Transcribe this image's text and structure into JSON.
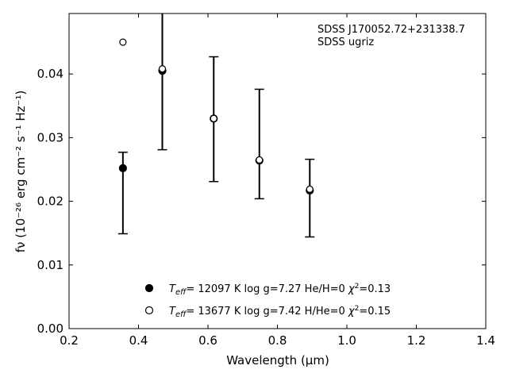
{
  "chart_data": {
    "type": "scatter",
    "xlabel": "Wavelength (μm)",
    "ylabel": "fν (10⁻²⁶ erg cm⁻² s⁻¹ Hz⁻¹)",
    "xlim": [
      0.2,
      1.4
    ],
    "ylim": [
      0.0,
      0.0495
    ],
    "x_ticks": [
      "0.2",
      "0.4",
      "0.6",
      "0.8",
      "1.0",
      "1.2",
      "1.4"
    ],
    "y_ticks": [
      "0.00",
      "0.01",
      "0.02",
      "0.03",
      "0.04"
    ],
    "annotation": [
      "SDSS J170052.72+231338.7",
      "SDSS ugriz"
    ],
    "observed": {
      "x": [
        0.3551,
        0.4686,
        0.6166,
        0.748,
        0.8932
      ],
      "y": [
        0.0252,
        0.0405,
        0.033,
        0.0264,
        0.0218
      ],
      "yerr_low": [
        0.0149,
        0.0281,
        0.0231,
        0.0204,
        0.0144
      ],
      "yerr_high": [
        0.0277,
        0.0495,
        0.0427,
        0.0376,
        0.0266
      ]
    },
    "series": [
      {
        "name": "T_eff= 12097 K  log g=7.27  He/H=0  χ²=0.13",
        "marker": "filled-circle",
        "color": "#000000",
        "x": [
          0.3551,
          0.4686,
          0.6166,
          0.748,
          0.8932
        ],
        "y": [
          0.0252,
          0.0405,
          0.033,
          0.0264,
          0.0217
        ]
      },
      {
        "name": "T_eff= 13677 K  log g=7.42  H/He=0  χ²=0.15",
        "marker": "open-circle",
        "color": "#000000",
        "x": [
          0.3551,
          0.4686,
          0.6166,
          0.748,
          0.8932
        ],
        "y": [
          0.045,
          0.0408,
          0.033,
          0.0265,
          0.0219
        ]
      }
    ],
    "legend": [
      {
        "marker": "filled-circle",
        "teff": "12097",
        "rest": "= 12097 K  log g=7.27  He/H=0",
        "chi": "=0.13"
      },
      {
        "marker": "open-circle",
        "teff": "13677",
        "rest": "= 13677 K  log g=7.42  H/He=0",
        "chi": "=0.15"
      }
    ],
    "legend_position": "lower-center",
    "grid": false
  }
}
